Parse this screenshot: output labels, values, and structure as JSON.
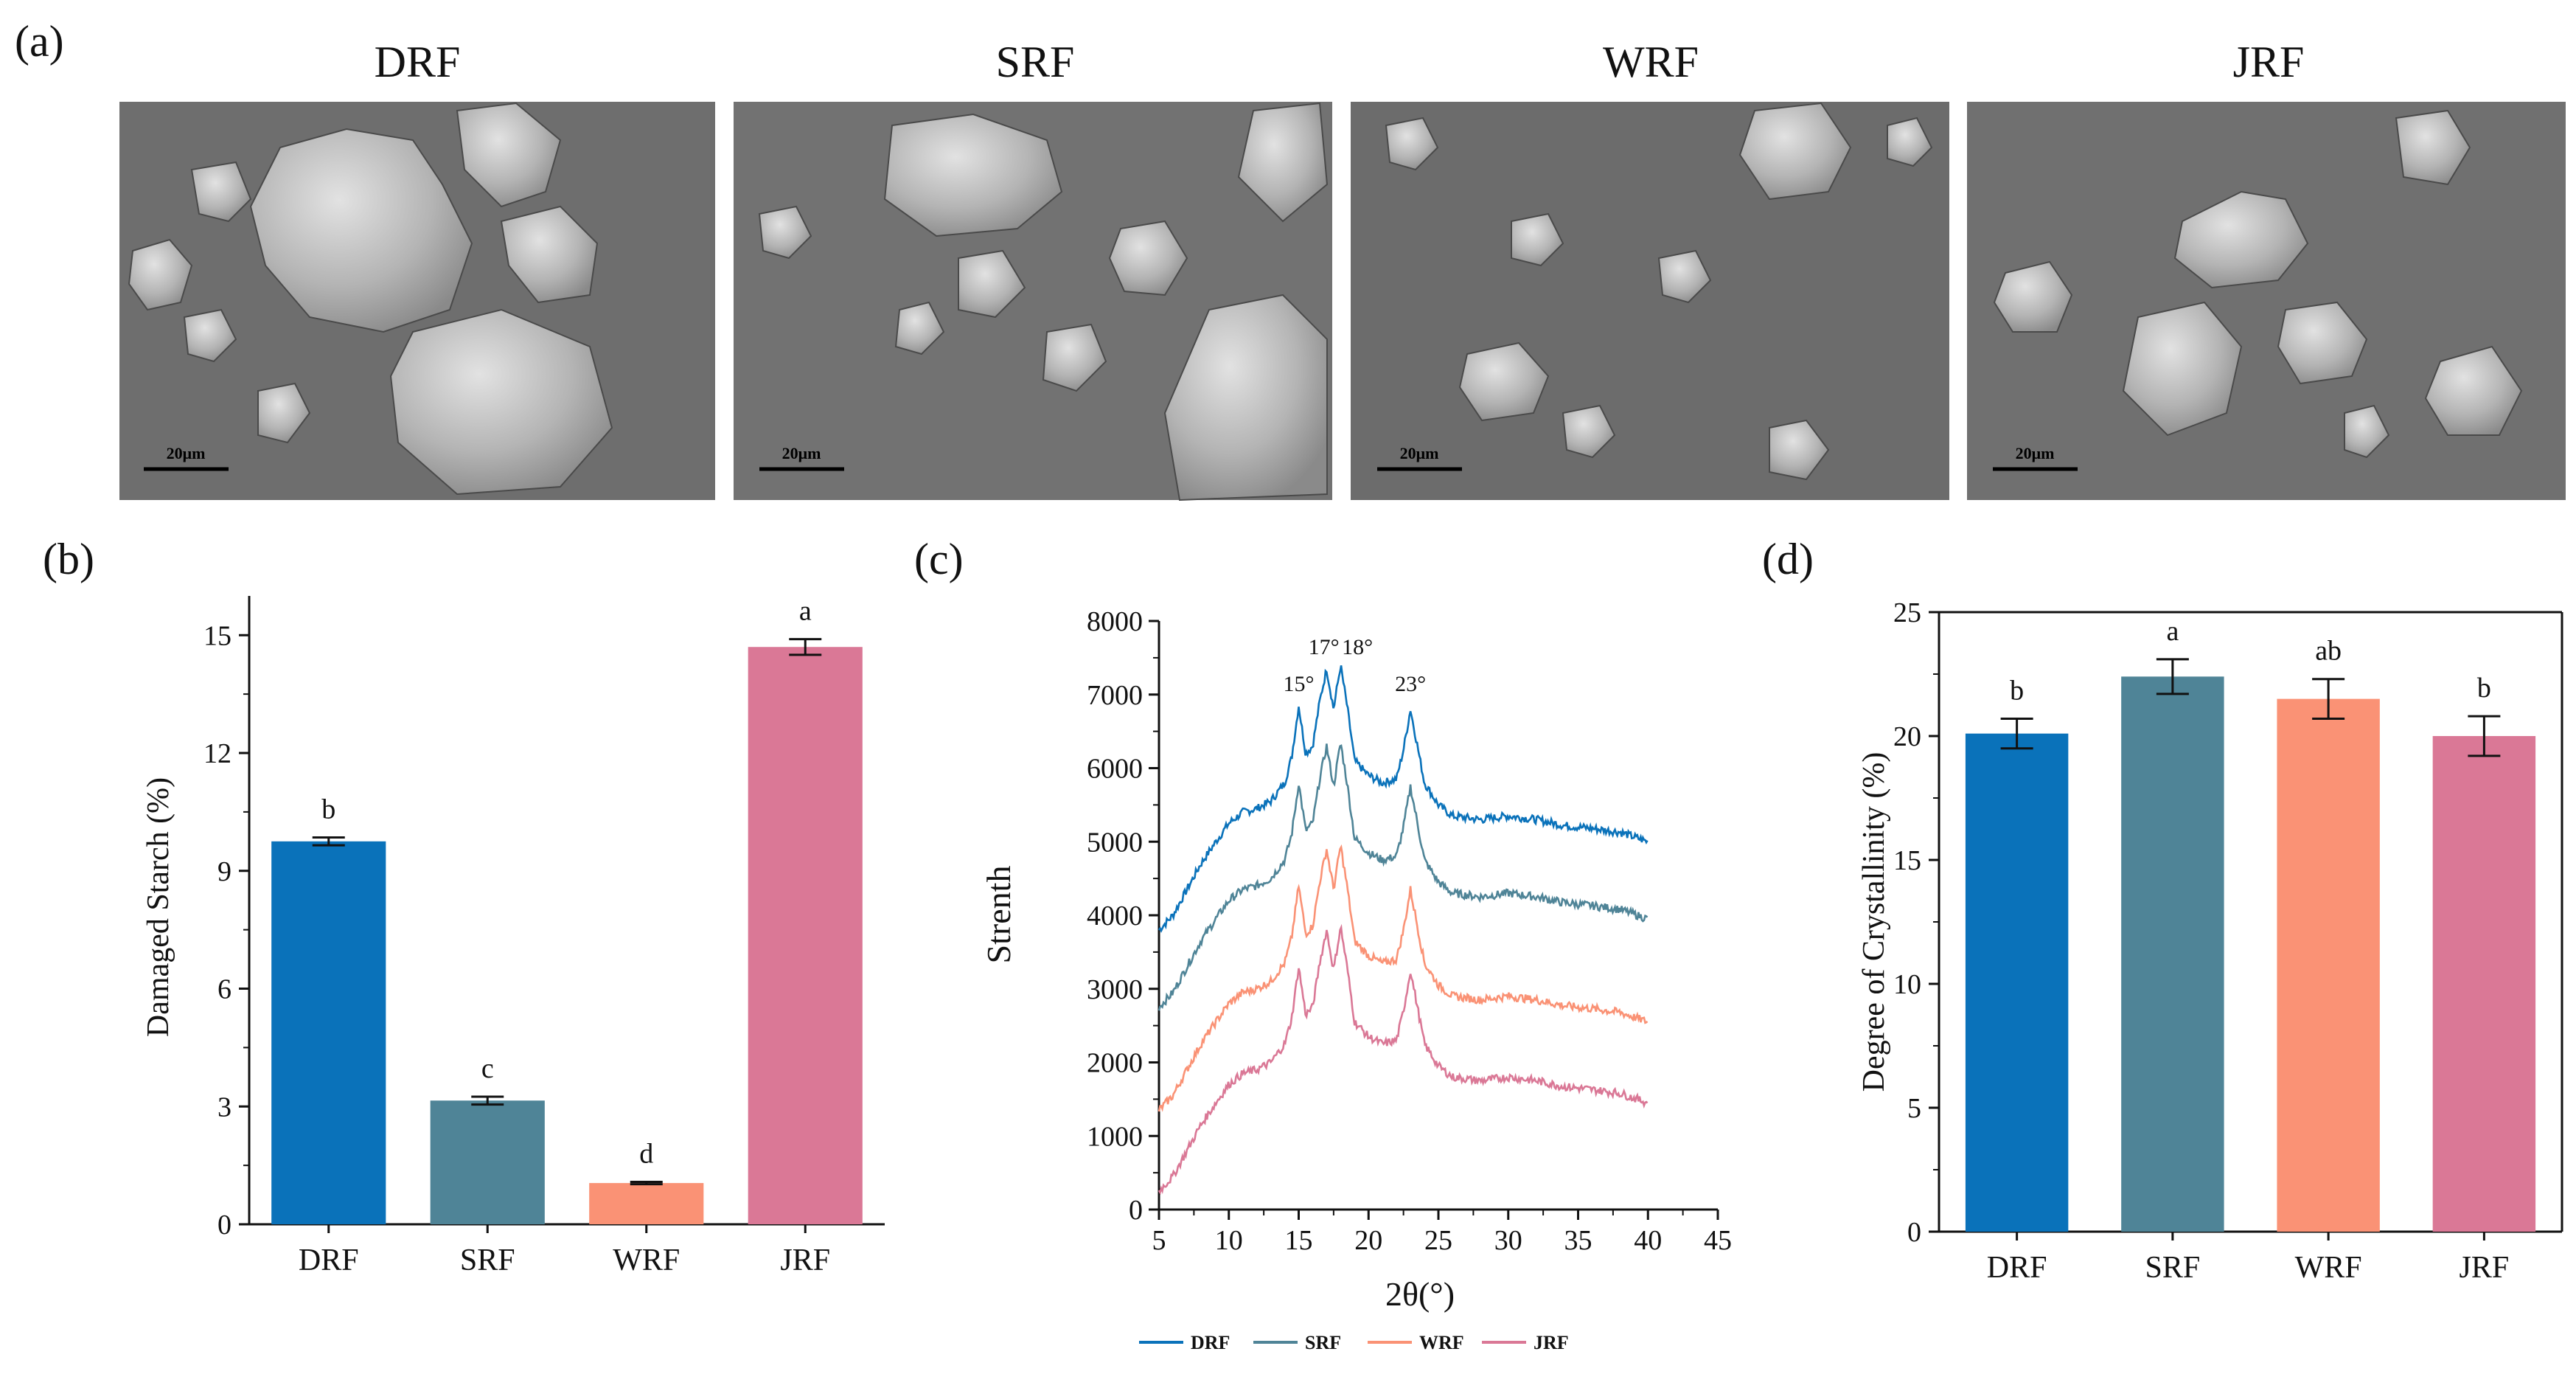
{
  "panel_a": {
    "label": "(a)",
    "images": [
      {
        "title": "DRF",
        "scale_bar": "20μm"
      },
      {
        "title": "SRF",
        "scale_bar": "20μm"
      },
      {
        "title": "WRF",
        "scale_bar": "20μm"
      },
      {
        "title": "JRF",
        "scale_bar": "20μm"
      }
    ]
  },
  "colors": {
    "DRF": "#0a72ba",
    "SRF": "#4f8497",
    "WRF": "#fa9275",
    "JRF": "#da7896",
    "sem_bg": "#6e6e6e"
  },
  "chart_data": [
    {
      "panel": "(b)",
      "type": "bar",
      "categories": [
        "DRF",
        "SRF",
        "WRF",
        "JRF"
      ],
      "values": [
        9.75,
        3.15,
        1.05,
        14.7
      ],
      "errors": [
        0.1,
        0.1,
        0.03,
        0.2
      ],
      "significance": [
        "b",
        "c",
        "d",
        "a"
      ],
      "ylabel": "Damaged Starch (%)",
      "ylim": [
        0,
        16
      ],
      "yticks": [
        "0",
        "3",
        "6",
        "9",
        "12",
        "15"
      ]
    },
    {
      "panel": "(c)",
      "type": "line",
      "xlabel": "2θ(°)",
      "ylabel": "Strenth",
      "xlim": [
        5,
        45
      ],
      "ylim": [
        0,
        8000
      ],
      "xticks": [
        "5",
        "10",
        "15",
        "20",
        "25",
        "30",
        "35",
        "40",
        "45"
      ],
      "yticks": [
        "0",
        "1000",
        "2000",
        "3000",
        "4000",
        "5000",
        "6000",
        "7000",
        "8000"
      ],
      "peaks": [
        {
          "label": "15°",
          "x": 15,
          "y": 7050
        },
        {
          "label": "17°",
          "x": 16.8,
          "y": 7550
        },
        {
          "label": "18°",
          "x": 19.2,
          "y": 7550
        },
        {
          "label": "23°",
          "x": 23,
          "y": 7050
        }
      ],
      "series": [
        {
          "name": "DRF",
          "offset": 3800,
          "end": 5000
        },
        {
          "name": "SRF",
          "offset": 2750,
          "end": 3950
        },
        {
          "name": "WRF",
          "offset": 1350,
          "end": 2600
        },
        {
          "name": "JRF",
          "offset": 250,
          "end": 1400
        }
      ],
      "x": [
        5,
        6,
        7,
        8,
        9,
        10,
        11,
        12,
        13,
        14,
        14.5,
        15,
        15.5,
        16,
        16.5,
        17,
        17.5,
        18,
        18.5,
        19,
        20,
        21,
        22,
        22.5,
        23,
        23.5,
        24,
        25,
        26,
        28,
        30,
        32,
        34,
        36,
        38,
        40
      ],
      "profile": [
        0,
        200,
        550,
        900,
        1180,
        1450,
        1600,
        1650,
        1750,
        2000,
        2350,
        3050,
        2400,
        2500,
        3100,
        3550,
        3000,
        3600,
        3000,
        2300,
        2100,
        2000,
        2050,
        2450,
        3000,
        2500,
        2000,
        1700,
        1550,
        1500,
        1550,
        1500,
        1420,
        1380,
        1330,
        1200
      ]
    },
    {
      "panel": "(d)",
      "type": "bar",
      "categories": [
        "DRF",
        "SRF",
        "WRF",
        "JRF"
      ],
      "values": [
        20.1,
        22.4,
        21.5,
        20.0
      ],
      "errors": [
        0.6,
        0.7,
        0.8,
        0.8
      ],
      "significance": [
        "b",
        "a",
        "ab",
        "b"
      ],
      "ylabel": "Degree of Crystallinity (%)",
      "ylim": [
        0,
        25
      ],
      "yticks": [
        "0",
        "5",
        "10",
        "15",
        "20",
        "25"
      ]
    }
  ]
}
